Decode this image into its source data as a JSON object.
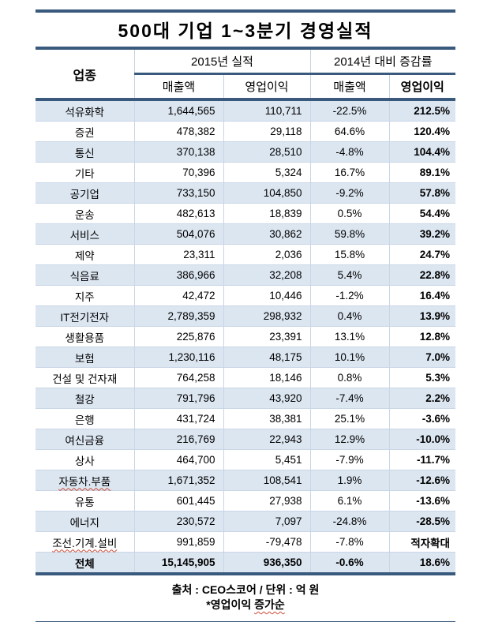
{
  "title": "500대 기업 1~3분기 경영실적",
  "colors": {
    "heavy_border": "#3a5a7d",
    "alt_row": "#dce6f1",
    "grid_line": "#c9d6e6",
    "squiggle": "#cc4a33"
  },
  "table": {
    "industry_header": "업종",
    "groups": [
      {
        "label": "2015년 실적",
        "subs": [
          "매출액",
          "영업이익"
        ]
      },
      {
        "label": "2014년 대비 증감률",
        "subs": [
          "매출액",
          "영업이익"
        ]
      }
    ],
    "rows": [
      {
        "industry": "석유화학",
        "sales": "1,644,565",
        "profit": "110,711",
        "sales_chg": "-22.5%",
        "profit_chg": "212.5%"
      },
      {
        "industry": "증권",
        "sales": "478,382",
        "profit": "29,118",
        "sales_chg": "64.6%",
        "profit_chg": "120.4%"
      },
      {
        "industry": "통신",
        "sales": "370,138",
        "profit": "28,510",
        "sales_chg": "-4.8%",
        "profit_chg": "104.4%"
      },
      {
        "industry": "기타",
        "sales": "70,396",
        "profit": "5,324",
        "sales_chg": "16.7%",
        "profit_chg": "89.1%"
      },
      {
        "industry": "공기업",
        "sales": "733,150",
        "profit": "104,850",
        "sales_chg": "-9.2%",
        "profit_chg": "57.8%"
      },
      {
        "industry": "운송",
        "sales": "482,613",
        "profit": "18,839",
        "sales_chg": "0.5%",
        "profit_chg": "54.4%"
      },
      {
        "industry": "서비스",
        "sales": "504,076",
        "profit": "30,862",
        "sales_chg": "59.8%",
        "profit_chg": "39.2%"
      },
      {
        "industry": "제약",
        "sales": "23,311",
        "profit": "2,036",
        "sales_chg": "15.8%",
        "profit_chg": "24.7%"
      },
      {
        "industry": "식음료",
        "sales": "386,966",
        "profit": "32,208",
        "sales_chg": "5.4%",
        "profit_chg": "22.8%"
      },
      {
        "industry": "지주",
        "sales": "42,472",
        "profit": "10,446",
        "sales_chg": "-1.2%",
        "profit_chg": "16.4%"
      },
      {
        "industry": "IT전기전자",
        "sales": "2,789,359",
        "profit": "298,932",
        "sales_chg": "0.4%",
        "profit_chg": "13.9%"
      },
      {
        "industry": "생활용품",
        "sales": "225,876",
        "profit": "23,391",
        "sales_chg": "13.1%",
        "profit_chg": "12.8%"
      },
      {
        "industry": "보험",
        "sales": "1,230,116",
        "profit": "48,175",
        "sales_chg": "10.1%",
        "profit_chg": "7.0%"
      },
      {
        "industry": "건설 및 건자재",
        "sales": "764,258",
        "profit": "18,146",
        "sales_chg": "0.8%",
        "profit_chg": "5.3%"
      },
      {
        "industry": "철강",
        "sales": "791,796",
        "profit": "43,920",
        "sales_chg": "-7.4%",
        "profit_chg": "2.2%"
      },
      {
        "industry": "은행",
        "sales": "431,724",
        "profit": "38,381",
        "sales_chg": "25.1%",
        "profit_chg": "-3.6%"
      },
      {
        "industry": "여신금융",
        "sales": "216,769",
        "profit": "22,943",
        "sales_chg": "12.9%",
        "profit_chg": "-10.0%"
      },
      {
        "industry": "상사",
        "sales": "464,700",
        "profit": "5,451",
        "sales_chg": "-7.9%",
        "profit_chg": "-11.7%"
      },
      {
        "industry": "자동차.부품",
        "sales": "1,671,352",
        "profit": "108,541",
        "sales_chg": "1.9%",
        "profit_chg": "-12.6%",
        "misspell": true
      },
      {
        "industry": "유통",
        "sales": "601,445",
        "profit": "27,938",
        "sales_chg": "6.1%",
        "profit_chg": "-13.6%"
      },
      {
        "industry": "에너지",
        "sales": "230,572",
        "profit": "7,097",
        "sales_chg": "-24.8%",
        "profit_chg": "-28.5%"
      },
      {
        "industry": "조선.기계.설비",
        "sales": "991,859",
        "profit": "-79,478",
        "sales_chg": "-7.8%",
        "profit_chg": "적자확대",
        "misspell": true
      }
    ],
    "total": {
      "industry": "전체",
      "sales": "15,145,905",
      "profit": "936,350",
      "sales_chg": "-0.6%",
      "profit_chg": "18.6%"
    }
  },
  "footer": {
    "source_line": "출처 : CEO스코어 / 단위 : 억 원",
    "note_prefix": "*영업이익 ",
    "note_highlight": "증가순"
  },
  "chart_data": {
    "type": "table",
    "title": "500대 기업 1~3분기 경영실적",
    "source": "CEO스코어",
    "unit": "억 원",
    "sort_note": "영업이익 증가순",
    "columns": [
      "업종",
      "2015년 실적 매출액",
      "2015년 실적 영업이익",
      "2014년 대비 증감률 매출액(%)",
      "2014년 대비 증감률 영업이익(%)"
    ],
    "rows": [
      [
        "석유화학",
        1644565,
        110711,
        -22.5,
        212.5
      ],
      [
        "증권",
        478382,
        29118,
        64.6,
        120.4
      ],
      [
        "통신",
        370138,
        28510,
        -4.8,
        104.4
      ],
      [
        "기타",
        70396,
        5324,
        16.7,
        89.1
      ],
      [
        "공기업",
        733150,
        104850,
        -9.2,
        57.8
      ],
      [
        "운송",
        482613,
        18839,
        0.5,
        54.4
      ],
      [
        "서비스",
        504076,
        30862,
        59.8,
        39.2
      ],
      [
        "제약",
        23311,
        2036,
        15.8,
        24.7
      ],
      [
        "식음료",
        386966,
        32208,
        5.4,
        22.8
      ],
      [
        "지주",
        42472,
        10446,
        -1.2,
        16.4
      ],
      [
        "IT전기전자",
        2789359,
        298932,
        0.4,
        13.9
      ],
      [
        "생활용품",
        225876,
        23391,
        13.1,
        12.8
      ],
      [
        "보험",
        1230116,
        48175,
        10.1,
        7.0
      ],
      [
        "건설 및 건자재",
        764258,
        18146,
        0.8,
        5.3
      ],
      [
        "철강",
        791796,
        43920,
        -7.4,
        2.2
      ],
      [
        "은행",
        431724,
        38381,
        25.1,
        -3.6
      ],
      [
        "여신금융",
        216769,
        22943,
        12.9,
        -10.0
      ],
      [
        "상사",
        464700,
        5451,
        -7.9,
        -11.7
      ],
      [
        "자동차.부품",
        1671352,
        108541,
        1.9,
        -12.6
      ],
      [
        "유통",
        601445,
        27938,
        6.1,
        -13.6
      ],
      [
        "에너지",
        230572,
        7097,
        -24.8,
        -28.5
      ],
      [
        "조선.기계.설비",
        991859,
        -79478,
        -7.8,
        "적자확대"
      ]
    ],
    "total": [
      "전체",
      15145905,
      936350,
      -0.6,
      18.6
    ]
  }
}
